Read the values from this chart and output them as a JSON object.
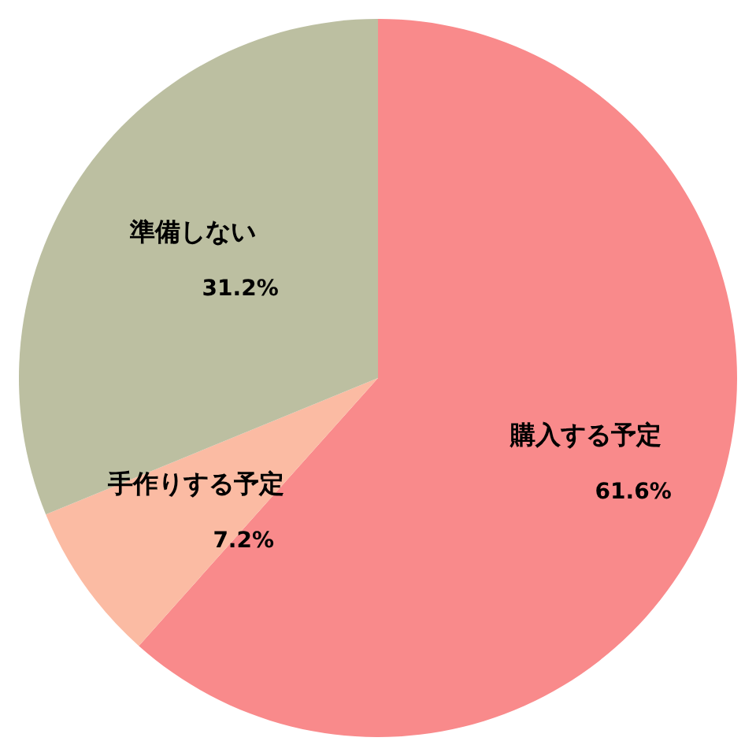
{
  "chart_data": {
    "type": "pie",
    "categories": [
      "購入する予定",
      "手作りする予定",
      "準備しない"
    ],
    "values": [
      61.6,
      7.2,
      31.2
    ],
    "colors": [
      "#f98a8b",
      "#fbbba3",
      "#bcbfa1"
    ],
    "value_labels": [
      "61.6%",
      "7.2%",
      "31.2%"
    ]
  }
}
